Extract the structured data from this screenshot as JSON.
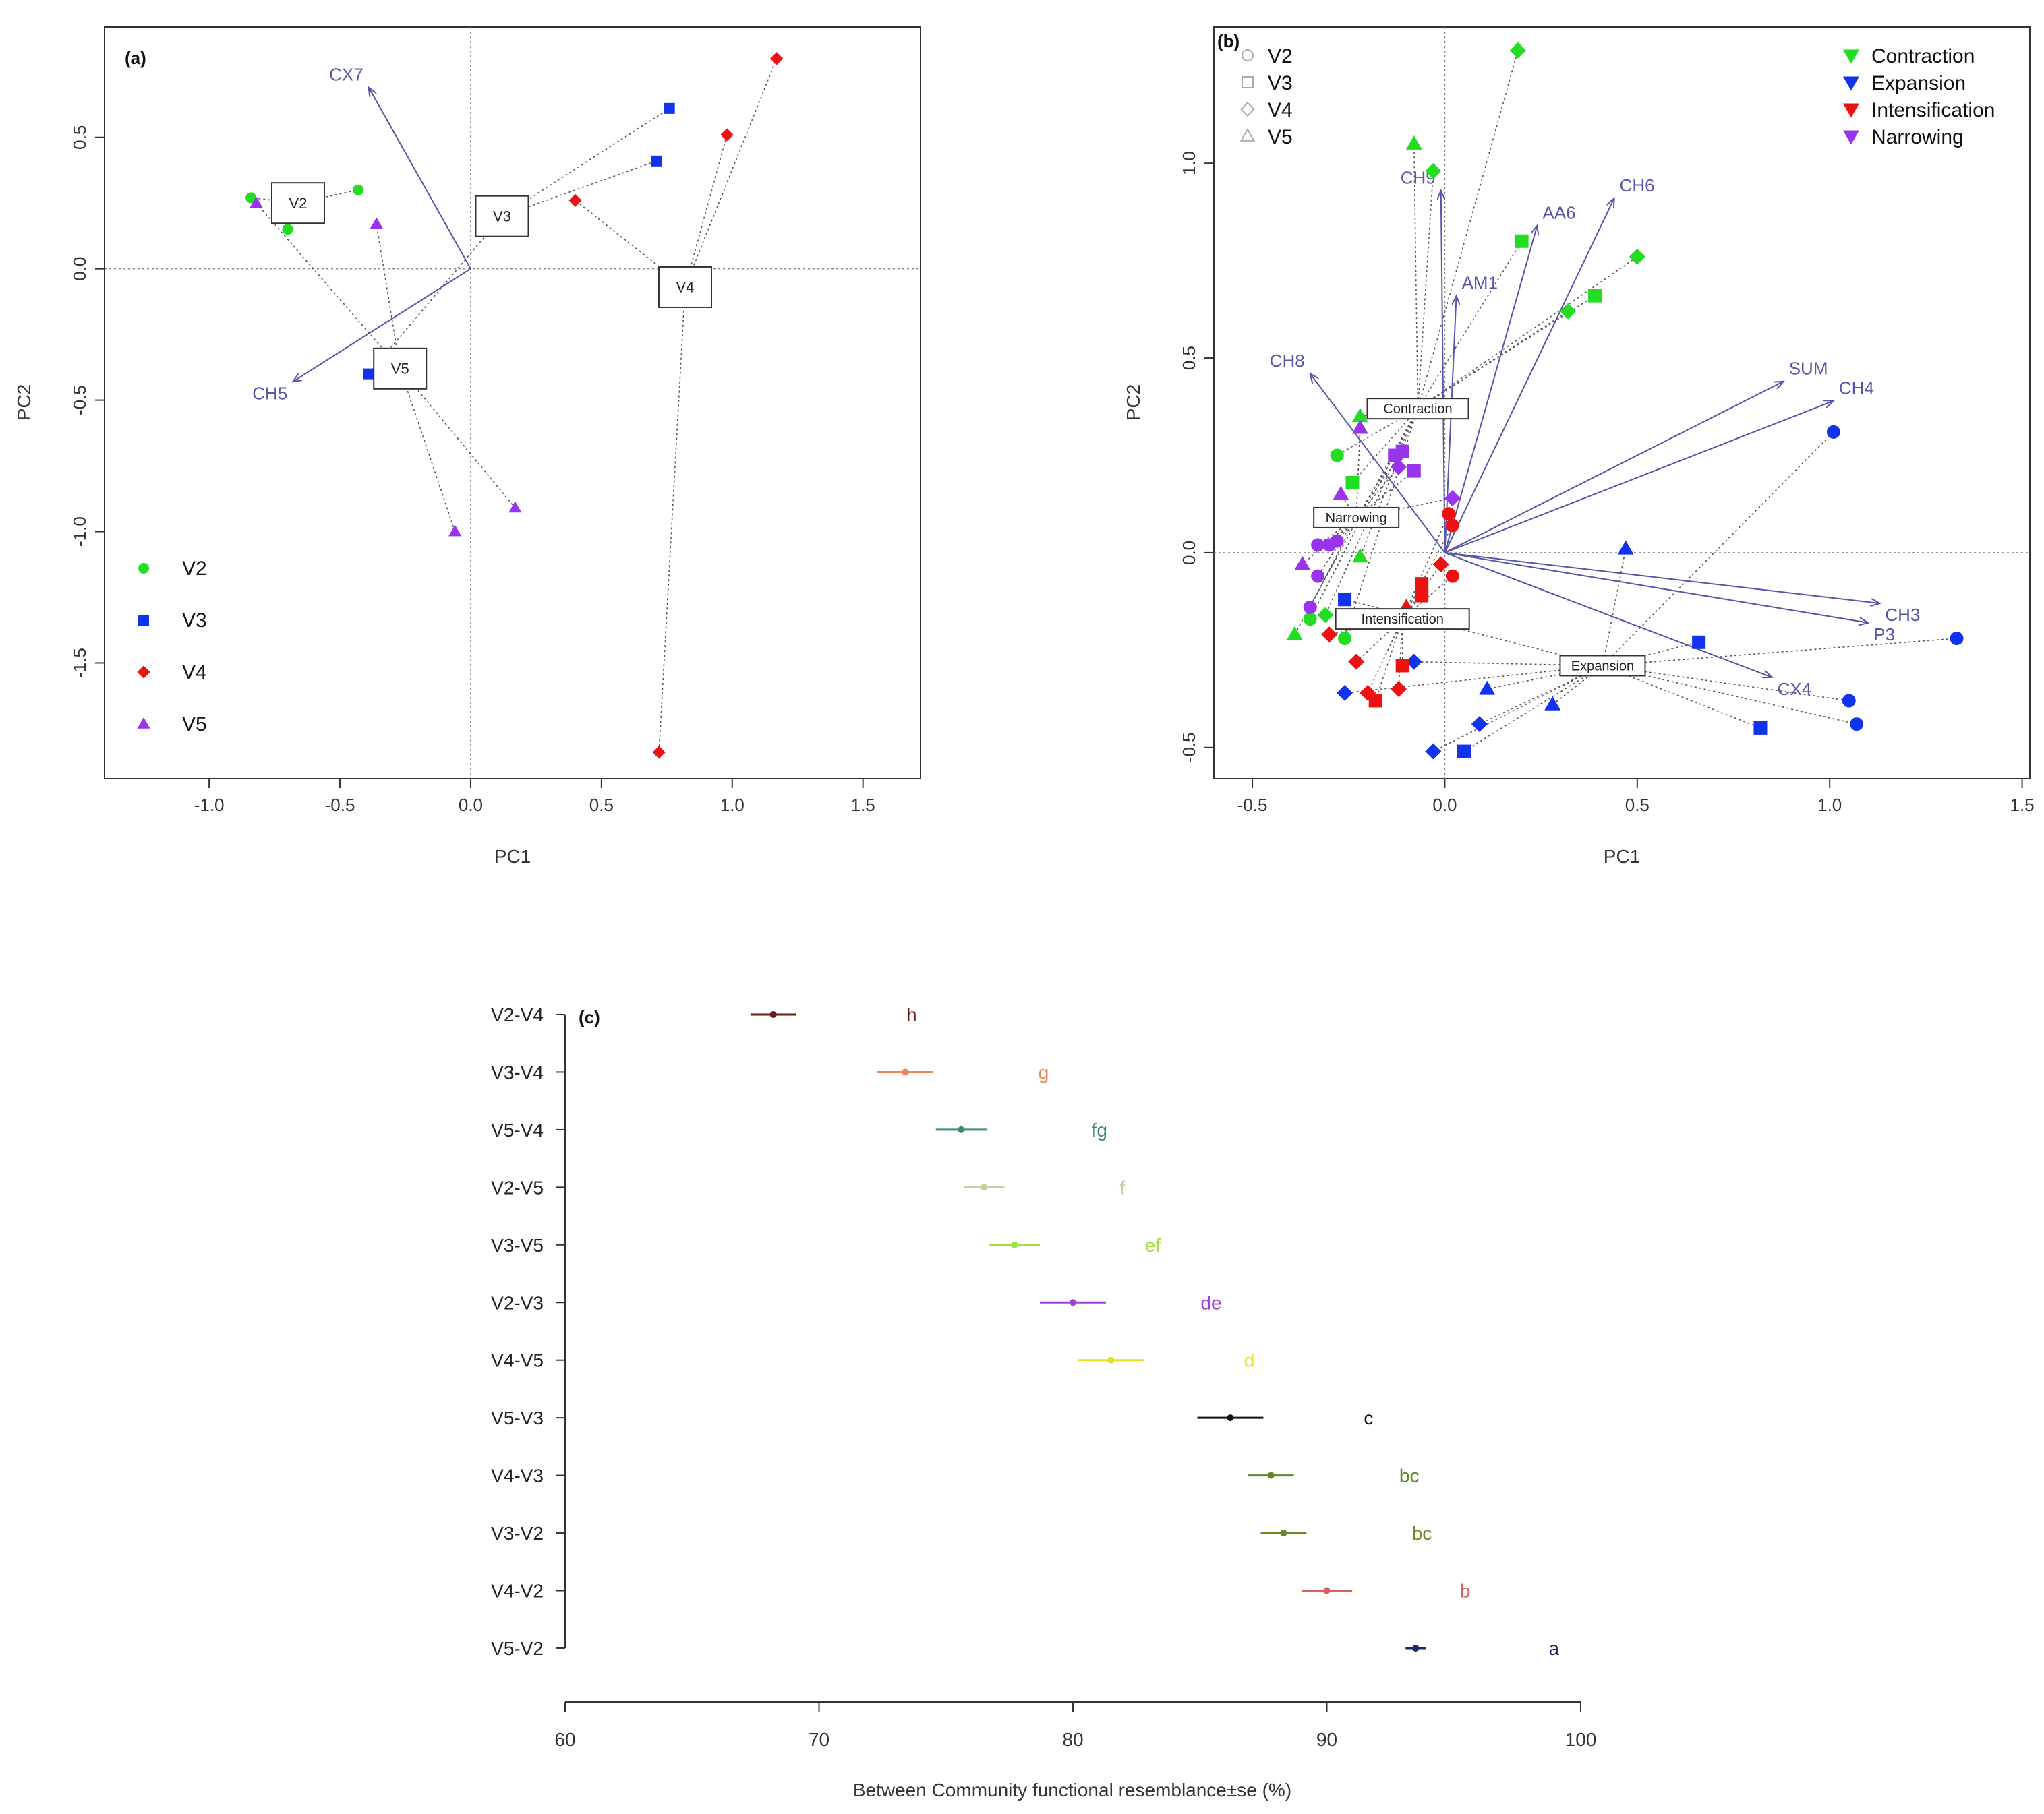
{
  "chart_data": [
    {
      "panel_label": "(a)",
      "type": "scatter",
      "subtype": "pca-biplot",
      "xlabel": "PC1",
      "ylabel": "PC2",
      "xlim": [
        -1.4,
        1.72
      ],
      "ylim": [
        -1.94,
        0.92
      ],
      "xticks": [
        -1.0,
        -0.5,
        0.0,
        0.5,
        1.0,
        1.5
      ],
      "xtick_labels": [
        "-1.0",
        "-0.5",
        "0.0",
        "0.5",
        "1.0",
        "1.5"
      ],
      "yticks": [
        -1.5,
        -1.0,
        -0.5,
        0.0,
        0.5
      ],
      "ytick_labels": [
        "-1.5",
        "-1.0",
        "-0.5",
        "0.0",
        "0.5"
      ],
      "legend_position": "bottom-left",
      "colors": {
        "V2": "#22dd22",
        "V3": "#1133ee",
        "V4": "#ee1111",
        "V5": "#9933ee",
        "arrow": "#5555aa",
        "spider": "#555555"
      },
      "legend": [
        {
          "label": "V2",
          "shape": "circle",
          "color": "#22dd22"
        },
        {
          "label": "V3",
          "shape": "square",
          "color": "#1133ee"
        },
        {
          "label": "V4",
          "shape": "diamond",
          "color": "#ee1111"
        },
        {
          "label": "V5",
          "shape": "triangle",
          "color": "#9933ee"
        }
      ],
      "centroids": [
        {
          "label": "V2",
          "x": -0.66,
          "y": 0.25
        },
        {
          "label": "V3",
          "x": 0.12,
          "y": 0.2
        },
        {
          "label": "V4",
          "x": 0.82,
          "y": -0.07
        },
        {
          "label": "V5",
          "x": -0.27,
          "y": -0.38
        }
      ],
      "series": [
        {
          "name": "V2",
          "points": [
            {
              "x": -0.84,
              "y": 0.27
            },
            {
              "x": -0.43,
              "y": 0.3
            },
            {
              "x": -0.7,
              "y": 0.15
            }
          ]
        },
        {
          "name": "V3",
          "points": [
            {
              "x": 0.76,
              "y": 0.61
            },
            {
              "x": 0.71,
              "y": 0.41
            },
            {
              "x": -0.39,
              "y": -0.4
            }
          ]
        },
        {
          "name": "V4",
          "points": [
            {
              "x": 1.17,
              "y": 0.8
            },
            {
              "x": 0.98,
              "y": 0.51
            },
            {
              "x": 0.4,
              "y": 0.26
            },
            {
              "x": 0.72,
              "y": -1.84
            }
          ]
        },
        {
          "name": "V5",
          "points": [
            {
              "x": -0.82,
              "y": 0.25
            },
            {
              "x": -0.36,
              "y": 0.17
            },
            {
              "x": -0.06,
              "y": -1.0
            },
            {
              "x": 0.17,
              "y": -0.91
            }
          ]
        }
      ],
      "vectors": [
        {
          "label": "CX7",
          "x": -0.39,
          "y": 0.69
        },
        {
          "label": "CH5",
          "x": -0.68,
          "y": -0.43
        }
      ]
    },
    {
      "panel_label": "(b)",
      "type": "scatter",
      "subtype": "pca-biplot",
      "xlabel": "PC1",
      "ylabel": "PC2",
      "xlim": [
        -0.6,
        1.52
      ],
      "ylim": [
        -0.58,
        1.35
      ],
      "xticks": [
        -0.5,
        0.0,
        0.5,
        1.0,
        1.5
      ],
      "xtick_labels": [
        "-0.5",
        "0.0",
        "0.5",
        "1.0",
        "1.5"
      ],
      "yticks": [
        -0.5,
        0.0,
        0.5,
        1.0
      ],
      "ytick_labels": [
        "-0.5",
        "0.0",
        "0.5",
        "1.0"
      ],
      "colors": {
        "Contraction": "#22dd22",
        "Expansion": "#1133ee",
        "Intensification": "#ee1111",
        "Narrowing": "#9933ee",
        "arrow": "#5555aa",
        "spider": "#555555"
      },
      "legend_shapes": [
        {
          "label": "V2",
          "shape": "circle"
        },
        {
          "label": "V3",
          "shape": "square"
        },
        {
          "label": "V4",
          "shape": "diamond"
        },
        {
          "label": "V5",
          "shape": "triangle"
        }
      ],
      "legend_groups": [
        {
          "label": "Contraction",
          "color": "#22dd22"
        },
        {
          "label": "Expansion",
          "color": "#1133ee"
        },
        {
          "label": "Intensification",
          "color": "#ee1111"
        },
        {
          "label": "Narrowing",
          "color": "#9933ee"
        }
      ],
      "centroids": [
        {
          "label": "Contraction",
          "x": -0.07,
          "y": 0.37
        },
        {
          "label": "Narrowing",
          "x": -0.23,
          "y": 0.09
        },
        {
          "label": "Intensification",
          "x": -0.11,
          "y": -0.17
        },
        {
          "label": "Expansion",
          "x": 0.41,
          "y": -0.29
        }
      ],
      "vectors": [
        {
          "label": "CH9",
          "x": -0.01,
          "y": 0.93
        },
        {
          "label": "AA6",
          "x": 0.24,
          "y": 0.84
        },
        {
          "label": "CH6",
          "x": 0.44,
          "y": 0.91
        },
        {
          "label": "AM1",
          "x": 0.03,
          "y": 0.66
        },
        {
          "label": "CH8",
          "x": -0.35,
          "y": 0.46
        },
        {
          "label": "SUM",
          "x": 0.88,
          "y": 0.44
        },
        {
          "label": "CH4",
          "x": 1.01,
          "y": 0.39
        },
        {
          "label": "CH3",
          "x": 1.13,
          "y": -0.13
        },
        {
          "label": "P3",
          "x": 1.1,
          "y": -0.18
        },
        {
          "label": "CX4",
          "x": 0.85,
          "y": -0.32
        }
      ],
      "series": [
        {
          "name": "Contraction",
          "points": [
            {
              "x": 0.19,
              "y": 1.29,
              "shape": "diamond"
            },
            {
              "x": -0.08,
              "y": 1.05,
              "shape": "triangle"
            },
            {
              "x": -0.03,
              "y": 0.98,
              "shape": "diamond"
            },
            {
              "x": 0.2,
              "y": 0.8,
              "shape": "square"
            },
            {
              "x": 0.32,
              "y": 0.62,
              "shape": "diamond"
            },
            {
              "x": 0.39,
              "y": 0.66,
              "shape": "square"
            },
            {
              "x": 0.5,
              "y": 0.76,
              "shape": "diamond"
            },
            {
              "x": -0.22,
              "y": 0.35,
              "shape": "triangle"
            },
            {
              "x": -0.28,
              "y": 0.25,
              "shape": "circle"
            },
            {
              "x": -0.24,
              "y": 0.18,
              "shape": "square"
            },
            {
              "x": -0.22,
              "y": -0.01,
              "shape": "triangle"
            },
            {
              "x": -0.35,
              "y": -0.17,
              "shape": "circle"
            },
            {
              "x": -0.31,
              "y": -0.16,
              "shape": "diamond"
            },
            {
              "x": -0.26,
              "y": -0.22,
              "shape": "circle"
            },
            {
              "x": -0.39,
              "y": -0.21,
              "shape": "triangle"
            }
          ]
        },
        {
          "name": "Expansion",
          "points": [
            {
              "x": 1.01,
              "y": 0.31,
              "shape": "circle"
            },
            {
              "x": 0.47,
              "y": 0.01,
              "shape": "triangle"
            },
            {
              "x": 1.33,
              "y": -0.22,
              "shape": "circle"
            },
            {
              "x": 0.66,
              "y": -0.23,
              "shape": "square"
            },
            {
              "x": 1.05,
              "y": -0.38,
              "shape": "circle"
            },
            {
              "x": 1.07,
              "y": -0.44,
              "shape": "circle"
            },
            {
              "x": 0.82,
              "y": -0.45,
              "shape": "square"
            },
            {
              "x": 0.28,
              "y": -0.39,
              "shape": "triangle"
            },
            {
              "x": 0.11,
              "y": -0.35,
              "shape": "triangle"
            },
            {
              "x": -0.08,
              "y": -0.28,
              "shape": "diamond"
            },
            {
              "x": 0.09,
              "y": -0.44,
              "shape": "diamond"
            },
            {
              "x": 0.05,
              "y": -0.51,
              "shape": "square"
            },
            {
              "x": -0.03,
              "y": -0.51,
              "shape": "diamond"
            },
            {
              "x": -0.26,
              "y": -0.36,
              "shape": "diamond"
            },
            {
              "x": -0.26,
              "y": -0.12,
              "shape": "square"
            }
          ]
        },
        {
          "name": "Intensification",
          "points": [
            {
              "x": 0.01,
              "y": 0.1,
              "shape": "circle"
            },
            {
              "x": 0.02,
              "y": 0.07,
              "shape": "circle"
            },
            {
              "x": -0.01,
              "y": -0.03,
              "shape": "diamond"
            },
            {
              "x": 0.02,
              "y": -0.06,
              "shape": "circle"
            },
            {
              "x": -0.06,
              "y": -0.08,
              "shape": "square"
            },
            {
              "x": -0.06,
              "y": -0.11,
              "shape": "square"
            },
            {
              "x": -0.1,
              "y": -0.14,
              "shape": "triangle"
            },
            {
              "x": -0.23,
              "y": -0.28,
              "shape": "diamond"
            },
            {
              "x": -0.11,
              "y": -0.29,
              "shape": "square"
            },
            {
              "x": -0.12,
              "y": -0.35,
              "shape": "diamond"
            },
            {
              "x": -0.2,
              "y": -0.36,
              "shape": "diamond"
            },
            {
              "x": -0.18,
              "y": -0.38,
              "shape": "square"
            },
            {
              "x": -0.3,
              "y": -0.21,
              "shape": "diamond"
            }
          ]
        },
        {
          "name": "Narrowing",
          "points": [
            {
              "x": -0.22,
              "y": 0.32,
              "shape": "triangle"
            },
            {
              "x": -0.13,
              "y": 0.25,
              "shape": "square"
            },
            {
              "x": -0.11,
              "y": 0.26,
              "shape": "square"
            },
            {
              "x": -0.12,
              "y": 0.22,
              "shape": "diamond"
            },
            {
              "x": -0.08,
              "y": 0.21,
              "shape": "square"
            },
            {
              "x": 0.02,
              "y": 0.14,
              "shape": "diamond"
            },
            {
              "x": -0.27,
              "y": 0.15,
              "shape": "triangle"
            },
            {
              "x": -0.33,
              "y": 0.02,
              "shape": "circle"
            },
            {
              "x": -0.3,
              "y": 0.02,
              "shape": "circle"
            },
            {
              "x": -0.28,
              "y": 0.03,
              "shape": "circle"
            },
            {
              "x": -0.37,
              "y": -0.03,
              "shape": "triangle"
            },
            {
              "x": -0.33,
              "y": -0.06,
              "shape": "circle"
            },
            {
              "x": -0.35,
              "y": -0.14,
              "shape": "circle"
            }
          ]
        }
      ]
    },
    {
      "panel_label": "(c)",
      "type": "dot-errorbar",
      "xlabel": "Between Community functional resemblance±se (%)",
      "ylabel": "",
      "xlim": [
        60,
        100
      ],
      "xticks": [
        60,
        70,
        80,
        90,
        100
      ],
      "xtick_labels": [
        "60",
        "70",
        "80",
        "90",
        "100"
      ],
      "categories": [
        "V2-V4",
        "V3-V4",
        "V5-V4",
        "V2-V5",
        "V3-V5",
        "V2-V3",
        "V4-V5",
        "V5-V3",
        "V4-V3",
        "V3-V2",
        "V4-V2",
        "V5-V2"
      ],
      "values": [
        68.2,
        73.4,
        75.6,
        76.5,
        77.7,
        80.0,
        81.5,
        86.2,
        87.8,
        88.3,
        90.0,
        93.5
      ],
      "se": [
        0.9,
        1.1,
        1.0,
        0.8,
        1.0,
        1.3,
        1.3,
        1.3,
        0.9,
        0.9,
        1.0,
        0.4
      ],
      "letters": [
        "h",
        "g",
        "fg",
        "f",
        "ef",
        "de",
        "d",
        "c",
        "bc",
        "bc",
        "b",
        "a"
      ],
      "colors": [
        "#6b1a1a",
        "#e8875a",
        "#3c8a70",
        "#c9cf9a",
        "#a0e040",
        "#a040d0",
        "#e8e020",
        "#111111",
        "#5a8a20",
        "#6a8a2a",
        "#d86060",
        "#1a2a6a"
      ]
    }
  ]
}
